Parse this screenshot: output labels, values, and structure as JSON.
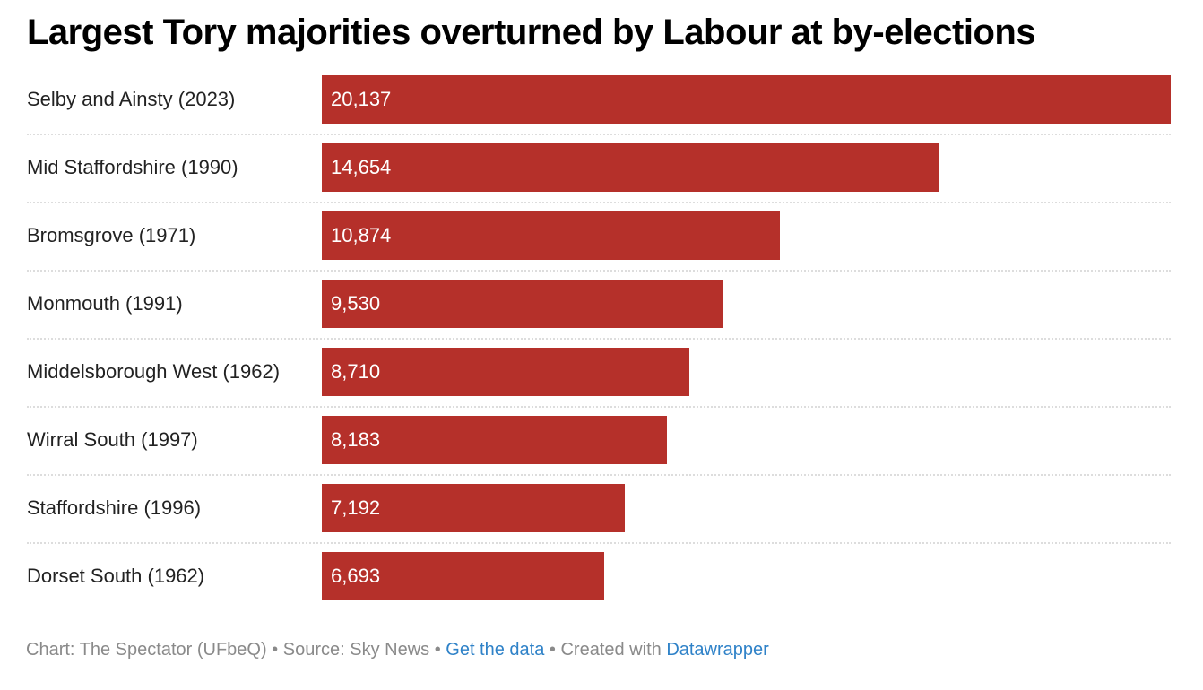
{
  "chart_data": {
    "type": "bar",
    "orientation": "horizontal",
    "title": "Largest Tory majorities overturned by Labour at by-elections",
    "categories": [
      "Selby and Ainsty (2023)",
      "Mid Staffordshire (1990)",
      "Bromsgrove (1971)",
      "Monmouth (1991)",
      "Middelsborough West (1962)",
      "Wirral South (1997)",
      "Staffordshire (1996)",
      "Dorset South (1962)"
    ],
    "values": [
      20137,
      14654,
      10874,
      9530,
      8710,
      8183,
      7192,
      6693
    ],
    "value_labels": [
      "20,137",
      "14,654",
      "10,874",
      "9,530",
      "8,710",
      "8,183",
      "7,192",
      "6,693"
    ],
    "xlim": [
      0,
      20137
    ],
    "color": "#b5302a",
    "grid": false
  },
  "footer": {
    "chart_credit": "Chart: The Spectator (UFbeQ)",
    "sep": " • ",
    "source": "Source: Sky News",
    "get_data": "Get the data",
    "created": "Created with ",
    "datawrapper": "Datawrapper"
  }
}
